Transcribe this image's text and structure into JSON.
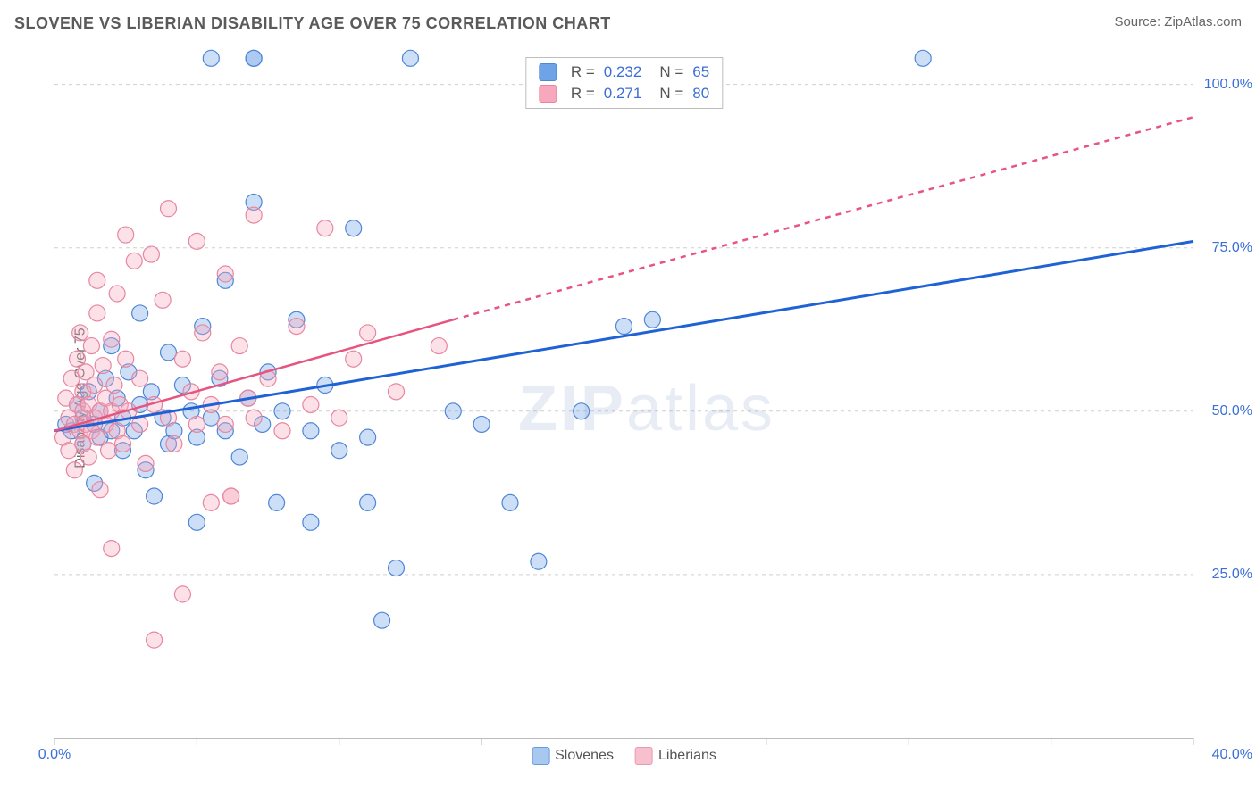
{
  "title": "SLOVENE VS LIBERIAN DISABILITY AGE OVER 75 CORRELATION CHART",
  "source_label": "Source: ZipAtlas.com",
  "ylabel": "Disability Age Over 75",
  "watermark_bold": "ZIP",
  "watermark_rest": "atlas",
  "chart": {
    "type": "scatter",
    "xlim": [
      0,
      40
    ],
    "ylim": [
      0,
      105
    ],
    "x_tick_positions": [
      0,
      5,
      10,
      15,
      20,
      25,
      30,
      35,
      40
    ],
    "x_tick_labels": {
      "min": "0.0%",
      "max": "40.0%"
    },
    "y_gridlines": [
      25,
      50,
      75,
      100
    ],
    "y_tick_labels": [
      "25.0%",
      "50.0%",
      "75.0%",
      "100.0%"
    ],
    "background_color": "#ffffff",
    "grid_color": "#cfcfcf",
    "axis_color": "#bbbbbb",
    "marker_radius": 9,
    "marker_stroke_width": 1.2,
    "marker_fill_opacity": 0.35,
    "series": [
      {
        "name": "Slovenes",
        "color": "#6fa3e8",
        "stroke": "#4f86d6",
        "R": "0.232",
        "N": "65",
        "trend": {
          "solid": {
            "x1": 0,
            "y1": 47,
            "x2": 40,
            "y2": 76
          },
          "line_color": "#1f62d6",
          "line_width": 3
        },
        "points": [
          [
            0.4,
            48
          ],
          [
            0.6,
            47
          ],
          [
            0.8,
            51
          ],
          [
            1.0,
            49
          ],
          [
            1.0,
            45
          ],
          [
            1.2,
            53
          ],
          [
            1.4,
            48
          ],
          [
            1.4,
            39
          ],
          [
            1.6,
            50
          ],
          [
            1.6,
            46
          ],
          [
            1.8,
            55
          ],
          [
            2.0,
            47
          ],
          [
            2.0,
            60
          ],
          [
            2.2,
            52
          ],
          [
            2.4,
            49
          ],
          [
            2.4,
            44
          ],
          [
            2.6,
            56
          ],
          [
            2.8,
            47
          ],
          [
            3.0,
            51
          ],
          [
            3.0,
            65
          ],
          [
            3.2,
            41
          ],
          [
            3.4,
            53
          ],
          [
            3.5,
            37
          ],
          [
            3.8,
            49
          ],
          [
            4.0,
            59
          ],
          [
            4.0,
            45
          ],
          [
            4.2,
            47
          ],
          [
            4.5,
            54
          ],
          [
            4.8,
            50
          ],
          [
            5.0,
            46
          ],
          [
            5.0,
            33
          ],
          [
            5.2,
            63
          ],
          [
            5.5,
            49
          ],
          [
            5.5,
            104
          ],
          [
            5.8,
            55
          ],
          [
            6.0,
            47
          ],
          [
            6.0,
            70
          ],
          [
            6.5,
            43
          ],
          [
            6.8,
            52
          ],
          [
            7.0,
            104
          ],
          [
            7.0,
            82
          ],
          [
            7.0,
            104
          ],
          [
            7.3,
            48
          ],
          [
            7.5,
            56
          ],
          [
            7.8,
            36
          ],
          [
            8.0,
            50
          ],
          [
            8.5,
            64
          ],
          [
            9.0,
            47
          ],
          [
            9.0,
            33
          ],
          [
            9.5,
            54
          ],
          [
            10.0,
            44
          ],
          [
            10.5,
            78
          ],
          [
            11.0,
            36
          ],
          [
            11.0,
            46
          ],
          [
            11.5,
            18
          ],
          [
            12.0,
            26
          ],
          [
            12.5,
            104
          ],
          [
            14.0,
            50
          ],
          [
            15.0,
            48
          ],
          [
            16.0,
            36
          ],
          [
            17.0,
            27
          ],
          [
            18.5,
            50
          ],
          [
            20.0,
            63
          ],
          [
            21.0,
            64
          ],
          [
            30.5,
            104
          ]
        ]
      },
      {
        "name": "Liberians",
        "color": "#f7a8bd",
        "stroke": "#e886a0",
        "R": "0.271",
        "N": "80",
        "trend": {
          "solid": {
            "x1": 0,
            "y1": 47,
            "x2": 14,
            "y2": 64
          },
          "dashed": {
            "x1": 14,
            "y1": 64,
            "x2": 40,
            "y2": 95
          },
          "line_color": "#e75480",
          "line_width": 2.5,
          "dash": "6 6"
        },
        "points": [
          [
            0.3,
            46
          ],
          [
            0.4,
            52
          ],
          [
            0.5,
            49
          ],
          [
            0.5,
            44
          ],
          [
            0.6,
            55
          ],
          [
            0.7,
            48
          ],
          [
            0.7,
            41
          ],
          [
            0.8,
            58
          ],
          [
            0.8,
            51
          ],
          [
            0.9,
            47
          ],
          [
            0.9,
            62
          ],
          [
            1.0,
            50
          ],
          [
            1.0,
            45
          ],
          [
            1.0,
            53
          ],
          [
            1.1,
            48
          ],
          [
            1.1,
            56
          ],
          [
            1.2,
            43
          ],
          [
            1.2,
            51
          ],
          [
            1.3,
            47
          ],
          [
            1.3,
            60
          ],
          [
            1.4,
            49
          ],
          [
            1.4,
            54
          ],
          [
            1.5,
            65
          ],
          [
            1.5,
            46
          ],
          [
            1.5,
            70
          ],
          [
            1.6,
            50
          ],
          [
            1.6,
            38
          ],
          [
            1.7,
            57
          ],
          [
            1.8,
            48
          ],
          [
            1.8,
            52
          ],
          [
            1.9,
            44
          ],
          [
            2.0,
            61
          ],
          [
            2.0,
            50
          ],
          [
            2.0,
            29
          ],
          [
            2.1,
            54
          ],
          [
            2.2,
            47
          ],
          [
            2.2,
            68
          ],
          [
            2.3,
            51
          ],
          [
            2.4,
            45
          ],
          [
            2.5,
            58
          ],
          [
            2.5,
            77
          ],
          [
            2.6,
            50
          ],
          [
            2.8,
            73
          ],
          [
            3.0,
            48
          ],
          [
            3.0,
            55
          ],
          [
            3.2,
            42
          ],
          [
            3.4,
            74
          ],
          [
            3.5,
            51
          ],
          [
            3.5,
            15
          ],
          [
            3.8,
            67
          ],
          [
            4.0,
            49
          ],
          [
            4.0,
            81
          ],
          [
            4.2,
            45
          ],
          [
            4.5,
            58
          ],
          [
            4.5,
            22
          ],
          [
            4.8,
            53
          ],
          [
            5.0,
            48
          ],
          [
            5.0,
            76
          ],
          [
            5.2,
            62
          ],
          [
            5.5,
            36
          ],
          [
            5.5,
            51
          ],
          [
            5.8,
            56
          ],
          [
            6.0,
            48
          ],
          [
            6.0,
            71
          ],
          [
            6.2,
            37
          ],
          [
            6.2,
            37
          ],
          [
            6.5,
            60
          ],
          [
            6.8,
            52
          ],
          [
            7.0,
            49
          ],
          [
            7.0,
            80
          ],
          [
            7.5,
            55
          ],
          [
            8.0,
            47
          ],
          [
            8.5,
            63
          ],
          [
            9.0,
            51
          ],
          [
            9.5,
            78
          ],
          [
            10.0,
            49
          ],
          [
            10.5,
            58
          ],
          [
            11.0,
            62
          ],
          [
            12.0,
            53
          ],
          [
            13.5,
            60
          ]
        ]
      }
    ]
  },
  "bottom_legend": [
    {
      "label": "Slovenes",
      "color": "#a8c8f0",
      "border": "#6a9be0"
    },
    {
      "label": "Liberians",
      "color": "#f7c0cf",
      "border": "#e99ab2"
    }
  ],
  "top_legend_labels": {
    "R": "R =",
    "N": "N ="
  }
}
